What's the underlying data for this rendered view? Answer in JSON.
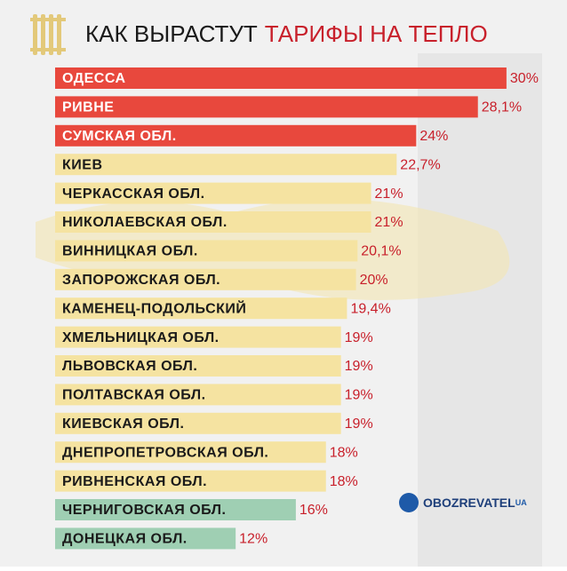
{
  "chart_data": {
    "type": "bar",
    "orientation": "horizontal",
    "title": "КАК ВЫРАСТУТ",
    "title_highlight": "ТАРИФЫ НА ТЕПЛО",
    "categories": [
      "ОДЕССА",
      "РИВНЕ",
      "СУМСКАЯ ОБЛ.",
      "КИЕВ",
      "ЧЕРКАССКАЯ ОБЛ.",
      "НИКОЛАЕВСКАЯ ОБЛ.",
      "ВИННИЦКАЯ ОБЛ.",
      "ЗАПОРОЖСКАЯ ОБЛ.",
      "КАМЕНЕЦ-ПОДОЛЬСКИЙ",
      "ХМЕЛЬНИЦКАЯ ОБЛ.",
      "ЛЬВОВСКАЯ ОБЛ.",
      "ПОЛТАВСКАЯ ОБЛ.",
      "КИЕВСКАЯ ОБЛ.",
      "ДНЕПРОПЕТРОВСКАЯ ОБЛ.",
      "РИВНЕНСКАЯ ОБЛ.",
      "ЧЕРНИГОВСКАЯ ОБЛ.",
      "ДОНЕЦКАЯ ОБЛ."
    ],
    "values": [
      30,
      28.1,
      24,
      22.7,
      21,
      21,
      20.1,
      20,
      19.4,
      19,
      19,
      19,
      19,
      18,
      18,
      16,
      12
    ],
    "value_labels": [
      "30%",
      "28,1%",
      "24%",
      "22,7%",
      "21%",
      "21%",
      "20,1%",
      "20%",
      "19,4%",
      "19%",
      "19%",
      "19%",
      "19%",
      "18%",
      "18%",
      "16%",
      "12%"
    ],
    "colors": [
      "#e8483d",
      "#e8483d",
      "#e8483d",
      "#f5e3a1",
      "#f5e3a1",
      "#f5e3a1",
      "#f5e3a1",
      "#f5e3a1",
      "#f5e3a1",
      "#f5e3a1",
      "#f5e3a1",
      "#f5e3a1",
      "#f5e3a1",
      "#f5e3a1",
      "#f5e3a1",
      "#9fcfb3",
      "#9fcfb3"
    ],
    "logo": "OBOZREVATEL",
    "logo_suffix": "UA"
  }
}
